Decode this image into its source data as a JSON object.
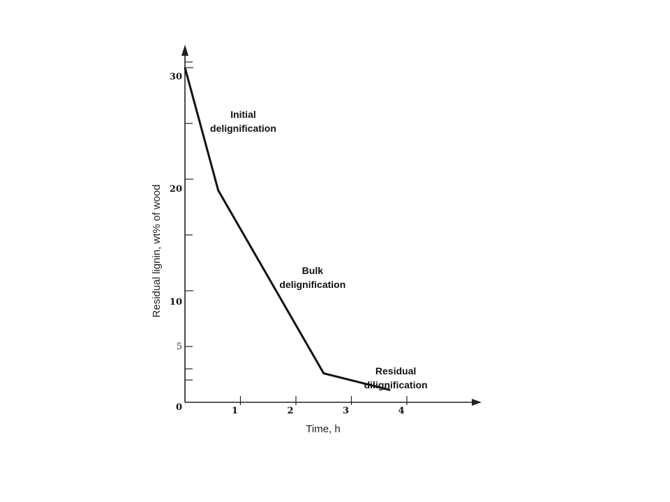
{
  "chart_data": {
    "type": "line",
    "title": "",
    "xlabel": "Time, h",
    "ylabel": "Residual lignin, wt% of wood",
    "xlim": [
      0,
      5.3
    ],
    "ylim": [
      0,
      31
    ],
    "grid": false,
    "x_ticks": [
      1,
      2,
      3,
      4
    ],
    "x_tick_labels": [
      "1",
      "2",
      "3",
      "4"
    ],
    "y_ticks_major": [
      10,
      20,
      30
    ],
    "y_ticks_minor": [
      2,
      3,
      5,
      15,
      25
    ],
    "y_tick_labels": [
      {
        "value": 30,
        "label": "30"
      },
      {
        "value": 20,
        "label": "20"
      },
      {
        "value": 10,
        "label": "10"
      },
      {
        "value": 5,
        "label": "5"
      },
      {
        "value": 0,
        "label": "0"
      }
    ],
    "series": [
      {
        "x": [
          0,
          0.6,
          2.5,
          3.7
        ],
        "y": [
          30,
          19,
          2.6,
          1.1
        ]
      }
    ],
    "annotations": [
      {
        "lines": [
          "Initial",
          "delignification"
        ],
        "x": 1.05,
        "y": 25.5
      },
      {
        "lines": [
          "Bulk",
          "delignification"
        ],
        "x": 2.3,
        "y": 11.5
      },
      {
        "lines": [
          "Residual",
          "dilignification"
        ],
        "x": 3.8,
        "y": 2.5
      }
    ]
  }
}
